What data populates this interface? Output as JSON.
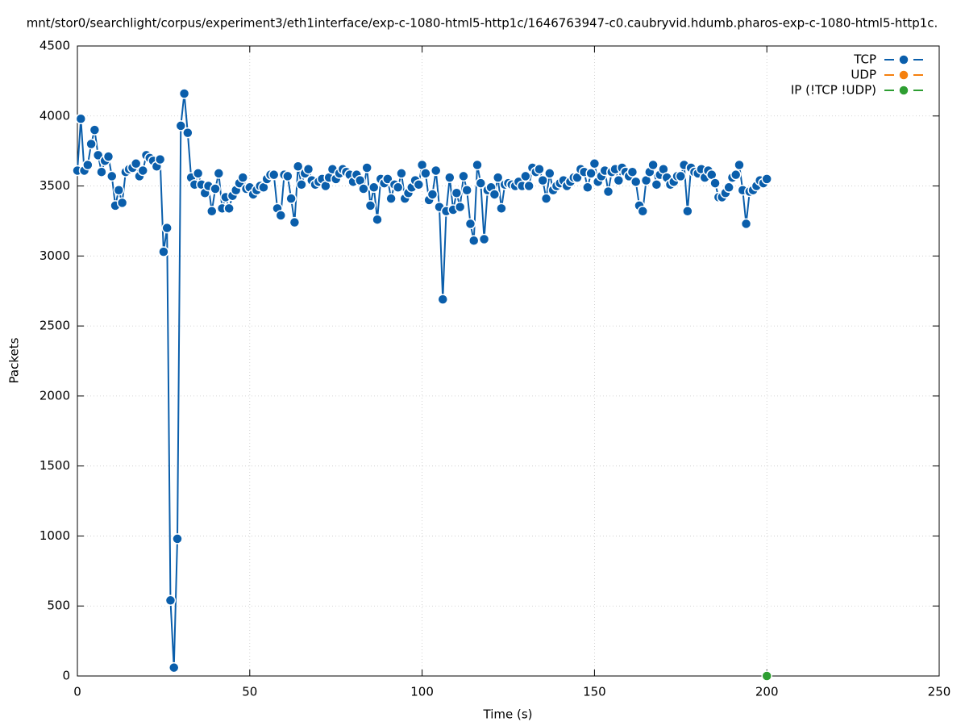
{
  "chart_data": {
    "type": "line",
    "title": "mnt/stor0/searchlight/corpus/experiment3/eth1interface/exp-c-1080-html5-http1c/1646763947-c0.caubryvid.hdumb.pharos-exp-c-1080-html5-http1c.",
    "xlabel": "Time (s)",
    "ylabel": "Packets",
    "xlim": [
      0,
      250
    ],
    "xticks": [
      0,
      50,
      100,
      150,
      200,
      250
    ],
    "ylim": [
      0,
      4500
    ],
    "yticks": [
      0,
      500,
      1000,
      1500,
      2000,
      2500,
      3000,
      3500,
      4000,
      4500
    ],
    "grid": true,
    "legend": "top-right",
    "series": [
      {
        "name": "TCP",
        "color": "#0a5eab",
        "x": [
          0,
          1,
          2,
          3,
          4,
          5,
          6,
          7,
          8,
          9,
          10,
          11,
          12,
          13,
          14,
          15,
          16,
          17,
          18,
          19,
          20,
          21,
          22,
          23,
          24,
          25,
          26,
          27,
          28,
          29,
          30,
          31,
          32,
          33,
          34,
          35,
          36,
          37,
          38,
          39,
          40,
          41,
          42,
          43,
          44,
          45,
          46,
          47,
          48,
          49,
          50,
          51,
          52,
          53,
          54,
          55,
          56,
          57,
          58,
          59,
          60,
          61,
          62,
          63,
          64,
          65,
          66,
          67,
          68,
          69,
          70,
          71,
          72,
          73,
          74,
          75,
          76,
          77,
          78,
          79,
          80,
          81,
          82,
          83,
          84,
          85,
          86,
          87,
          88,
          89,
          90,
          91,
          92,
          93,
          94,
          95,
          96,
          97,
          98,
          99,
          100,
          101,
          102,
          103,
          104,
          105,
          106,
          107,
          108,
          109,
          110,
          111,
          112,
          113,
          114,
          115,
          116,
          117,
          118,
          119,
          120,
          121,
          122,
          123,
          124,
          125,
          126,
          127,
          128,
          129,
          130,
          131,
          132,
          133,
          134,
          135,
          136,
          137,
          138,
          139,
          140,
          141,
          142,
          143,
          144,
          145,
          146,
          147,
          148,
          149,
          150,
          151,
          152,
          153,
          154,
          155,
          156,
          157,
          158,
          159,
          160,
          161,
          162,
          163,
          164,
          165,
          166,
          167,
          168,
          169,
          170,
          171,
          172,
          173,
          174,
          175,
          176,
          177,
          178,
          179,
          180,
          181,
          182,
          183,
          184,
          185,
          186,
          187,
          188,
          189,
          190,
          191,
          192,
          193,
          194,
          195,
          196,
          197,
          198,
          199,
          200
        ],
        "values": [
          3610,
          3980,
          3610,
          3650,
          3800,
          3900,
          3720,
          3600,
          3680,
          3710,
          3570,
          3360,
          3470,
          3380,
          3600,
          3620,
          3630,
          3660,
          3570,
          3610,
          3720,
          3700,
          3680,
          3640,
          3690,
          3030,
          3200,
          540,
          60,
          980,
          3930,
          4160,
          3880,
          3560,
          3510,
          3590,
          3510,
          3450,
          3500,
          3320,
          3480,
          3590,
          3340,
          3420,
          3340,
          3430,
          3470,
          3520,
          3560,
          3480,
          3490,
          3440,
          3470,
          3500,
          3490,
          3550,
          3580,
          3580,
          3340,
          3290,
          3580,
          3570,
          3410,
          3240,
          3640,
          3510,
          3590,
          3620,
          3540,
          3510,
          3530,
          3550,
          3500,
          3560,
          3620,
          3550,
          3590,
          3620,
          3600,
          3580,
          3530,
          3580,
          3540,
          3480,
          3630,
          3360,
          3490,
          3260,
          3550,
          3520,
          3550,
          3410,
          3510,
          3490,
          3590,
          3410,
          3450,
          3490,
          3540,
          3510,
          3650,
          3590,
          3400,
          3440,
          3610,
          3350,
          2690,
          3320,
          3560,
          3330,
          3450,
          3350,
          3570,
          3470,
          3230,
          3110,
          3650,
          3520,
          3120,
          3470,
          3490,
          3440,
          3560,
          3340,
          3510,
          3520,
          3510,
          3500,
          3530,
          3500,
          3570,
          3500,
          3630,
          3600,
          3620,
          3540,
          3410,
          3590,
          3470,
          3500,
          3520,
          3540,
          3500,
          3530,
          3560,
          3560,
          3620,
          3600,
          3490,
          3590,
          3660,
          3530,
          3570,
          3610,
          3460,
          3600,
          3620,
          3540,
          3630,
          3600,
          3570,
          3600,
          3530,
          3360,
          3320,
          3540,
          3600,
          3650,
          3510,
          3580,
          3620,
          3560,
          3510,
          3530,
          3570,
          3570,
          3650,
          3320,
          3630,
          3600,
          3590,
          3620,
          3560,
          3610,
          3580,
          3520,
          3420,
          3420,
          3450,
          3490,
          3560,
          3580,
          3650,
          3470,
          3230,
          3460,
          3470,
          3500,
          3540,
          3520,
          3550
        ]
      },
      {
        "name": "UDP",
        "color": "#f5800e",
        "x": [],
        "values": []
      },
      {
        "name": "IP (!TCP  !UDP)",
        "color": "#2e9e32",
        "x": [
          200
        ],
        "values": [
          0
        ]
      }
    ]
  }
}
